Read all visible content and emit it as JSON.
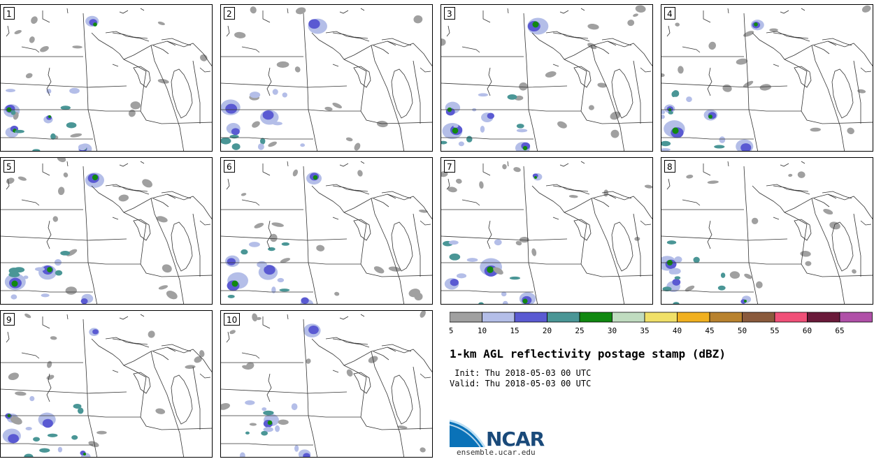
{
  "figure": {
    "title": "1-km AGL reflectivity postage stamp (dBZ)",
    "init": " Init: Thu 2018-05-03 00 UTC",
    "valid": "Valid: Thu 2018-05-03 00 UTC",
    "logo_text": "NCAR",
    "site": "ensemble.ucar.edu"
  },
  "members": [
    "1",
    "2",
    "3",
    "4",
    "5",
    "6",
    "7",
    "8",
    "9",
    "10"
  ],
  "colorbar": {
    "colors": [
      "#a0a0a0",
      "#b4bee8",
      "#5a5ad2",
      "#4a9696",
      "#108810",
      "#c0dcc0",
      "#f0e068",
      "#f0b020",
      "#b8822e",
      "#8a5a3c",
      "#f05078",
      "#6a1a3a",
      "#b050a8"
    ],
    "tick_labels": [
      "5",
      "10",
      "15",
      "20",
      "25",
      "30",
      "35",
      "40",
      "45",
      "50",
      "55",
      "60",
      "65"
    ]
  }
}
